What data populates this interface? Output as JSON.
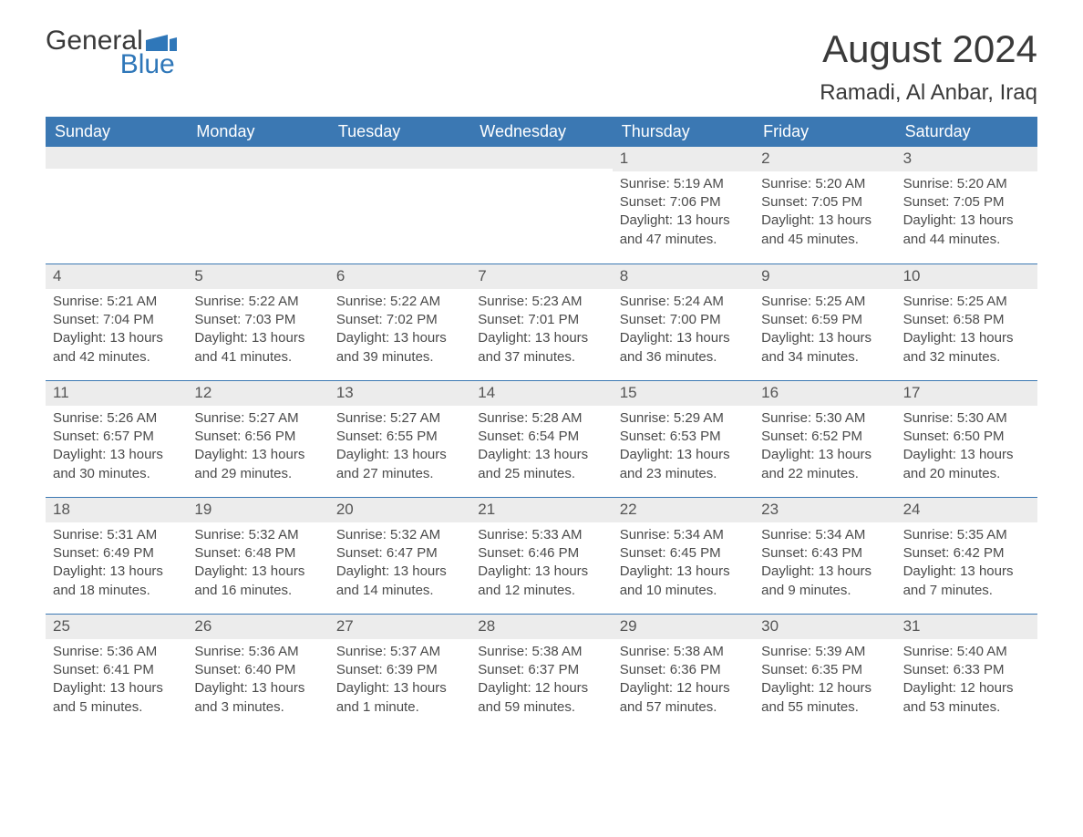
{
  "logo": {
    "text_top": "General",
    "text_bottom": "Blue",
    "flag_color": "#2f77b9"
  },
  "title": "August 2024",
  "location": "Ramadi, Al Anbar, Iraq",
  "colors": {
    "header_bg": "#3b78b3",
    "header_text": "#ffffff",
    "daynum_bg": "#ececec",
    "row_border": "#3b78b3",
    "body_text": "#4a4a4a",
    "page_bg": "#ffffff"
  },
  "weekdays": [
    "Sunday",
    "Monday",
    "Tuesday",
    "Wednesday",
    "Thursday",
    "Friday",
    "Saturday"
  ],
  "weeks": [
    [
      {
        "day": "",
        "lines": []
      },
      {
        "day": "",
        "lines": []
      },
      {
        "day": "",
        "lines": []
      },
      {
        "day": "",
        "lines": []
      },
      {
        "day": "1",
        "lines": [
          "Sunrise: 5:19 AM",
          "Sunset: 7:06 PM",
          "Daylight: 13 hours and 47 minutes."
        ]
      },
      {
        "day": "2",
        "lines": [
          "Sunrise: 5:20 AM",
          "Sunset: 7:05 PM",
          "Daylight: 13 hours and 45 minutes."
        ]
      },
      {
        "day": "3",
        "lines": [
          "Sunrise: 5:20 AM",
          "Sunset: 7:05 PM",
          "Daylight: 13 hours and 44 minutes."
        ]
      }
    ],
    [
      {
        "day": "4",
        "lines": [
          "Sunrise: 5:21 AM",
          "Sunset: 7:04 PM",
          "Daylight: 13 hours and 42 minutes."
        ]
      },
      {
        "day": "5",
        "lines": [
          "Sunrise: 5:22 AM",
          "Sunset: 7:03 PM",
          "Daylight: 13 hours and 41 minutes."
        ]
      },
      {
        "day": "6",
        "lines": [
          "Sunrise: 5:22 AM",
          "Sunset: 7:02 PM",
          "Daylight: 13 hours and 39 minutes."
        ]
      },
      {
        "day": "7",
        "lines": [
          "Sunrise: 5:23 AM",
          "Sunset: 7:01 PM",
          "Daylight: 13 hours and 37 minutes."
        ]
      },
      {
        "day": "8",
        "lines": [
          "Sunrise: 5:24 AM",
          "Sunset: 7:00 PM",
          "Daylight: 13 hours and 36 minutes."
        ]
      },
      {
        "day": "9",
        "lines": [
          "Sunrise: 5:25 AM",
          "Sunset: 6:59 PM",
          "Daylight: 13 hours and 34 minutes."
        ]
      },
      {
        "day": "10",
        "lines": [
          "Sunrise: 5:25 AM",
          "Sunset: 6:58 PM",
          "Daylight: 13 hours and 32 minutes."
        ]
      }
    ],
    [
      {
        "day": "11",
        "lines": [
          "Sunrise: 5:26 AM",
          "Sunset: 6:57 PM",
          "Daylight: 13 hours and 30 minutes."
        ]
      },
      {
        "day": "12",
        "lines": [
          "Sunrise: 5:27 AM",
          "Sunset: 6:56 PM",
          "Daylight: 13 hours and 29 minutes."
        ]
      },
      {
        "day": "13",
        "lines": [
          "Sunrise: 5:27 AM",
          "Sunset: 6:55 PM",
          "Daylight: 13 hours and 27 minutes."
        ]
      },
      {
        "day": "14",
        "lines": [
          "Sunrise: 5:28 AM",
          "Sunset: 6:54 PM",
          "Daylight: 13 hours and 25 minutes."
        ]
      },
      {
        "day": "15",
        "lines": [
          "Sunrise: 5:29 AM",
          "Sunset: 6:53 PM",
          "Daylight: 13 hours and 23 minutes."
        ]
      },
      {
        "day": "16",
        "lines": [
          "Sunrise: 5:30 AM",
          "Sunset: 6:52 PM",
          "Daylight: 13 hours and 22 minutes."
        ]
      },
      {
        "day": "17",
        "lines": [
          "Sunrise: 5:30 AM",
          "Sunset: 6:50 PM",
          "Daylight: 13 hours and 20 minutes."
        ]
      }
    ],
    [
      {
        "day": "18",
        "lines": [
          "Sunrise: 5:31 AM",
          "Sunset: 6:49 PM",
          "Daylight: 13 hours and 18 minutes."
        ]
      },
      {
        "day": "19",
        "lines": [
          "Sunrise: 5:32 AM",
          "Sunset: 6:48 PM",
          "Daylight: 13 hours and 16 minutes."
        ]
      },
      {
        "day": "20",
        "lines": [
          "Sunrise: 5:32 AM",
          "Sunset: 6:47 PM",
          "Daylight: 13 hours and 14 minutes."
        ]
      },
      {
        "day": "21",
        "lines": [
          "Sunrise: 5:33 AM",
          "Sunset: 6:46 PM",
          "Daylight: 13 hours and 12 minutes."
        ]
      },
      {
        "day": "22",
        "lines": [
          "Sunrise: 5:34 AM",
          "Sunset: 6:45 PM",
          "Daylight: 13 hours and 10 minutes."
        ]
      },
      {
        "day": "23",
        "lines": [
          "Sunrise: 5:34 AM",
          "Sunset: 6:43 PM",
          "Daylight: 13 hours and 9 minutes."
        ]
      },
      {
        "day": "24",
        "lines": [
          "Sunrise: 5:35 AM",
          "Sunset: 6:42 PM",
          "Daylight: 13 hours and 7 minutes."
        ]
      }
    ],
    [
      {
        "day": "25",
        "lines": [
          "Sunrise: 5:36 AM",
          "Sunset: 6:41 PM",
          "Daylight: 13 hours and 5 minutes."
        ]
      },
      {
        "day": "26",
        "lines": [
          "Sunrise: 5:36 AM",
          "Sunset: 6:40 PM",
          "Daylight: 13 hours and 3 minutes."
        ]
      },
      {
        "day": "27",
        "lines": [
          "Sunrise: 5:37 AM",
          "Sunset: 6:39 PM",
          "Daylight: 13 hours and 1 minute."
        ]
      },
      {
        "day": "28",
        "lines": [
          "Sunrise: 5:38 AM",
          "Sunset: 6:37 PM",
          "Daylight: 12 hours and 59 minutes."
        ]
      },
      {
        "day": "29",
        "lines": [
          "Sunrise: 5:38 AM",
          "Sunset: 6:36 PM",
          "Daylight: 12 hours and 57 minutes."
        ]
      },
      {
        "day": "30",
        "lines": [
          "Sunrise: 5:39 AM",
          "Sunset: 6:35 PM",
          "Daylight: 12 hours and 55 minutes."
        ]
      },
      {
        "day": "31",
        "lines": [
          "Sunrise: 5:40 AM",
          "Sunset: 6:33 PM",
          "Daylight: 12 hours and 53 minutes."
        ]
      }
    ]
  ]
}
